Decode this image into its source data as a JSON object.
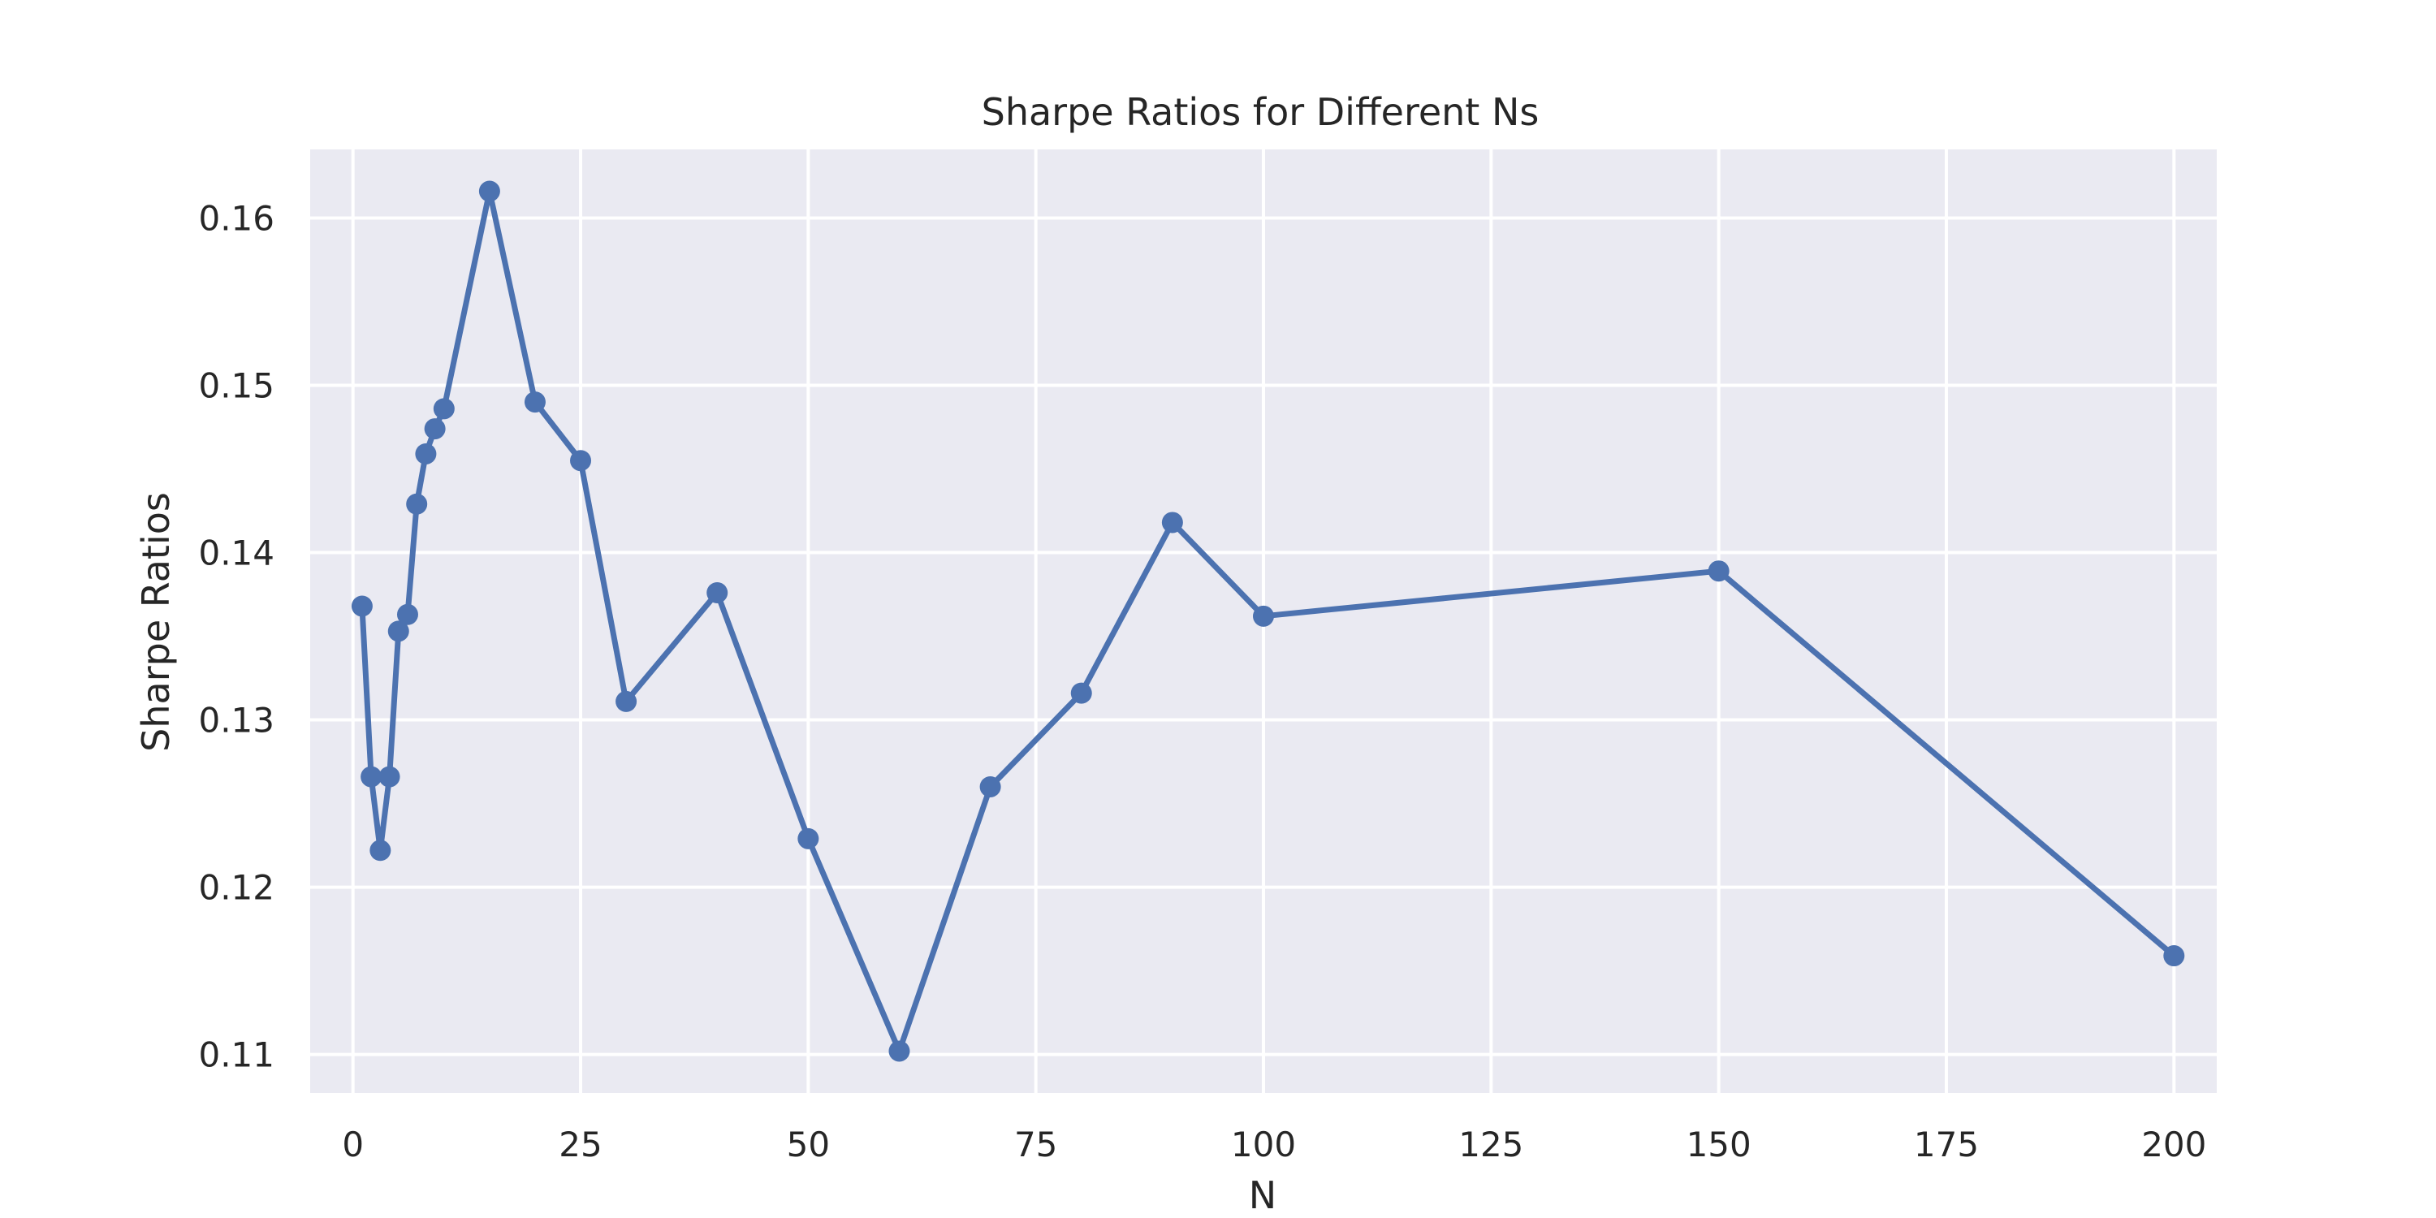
{
  "chart_data": {
    "type": "line",
    "title": "Sharpe Ratios for Different Ns",
    "xlabel": "N",
    "ylabel": "Sharpe Ratios",
    "xlim": [
      -4.7,
      204.7
    ],
    "ylim": [
      0.1077,
      0.1641
    ],
    "xticks": [
      0,
      25,
      50,
      75,
      100,
      125,
      150,
      175,
      200
    ],
    "yticks": [
      0.11,
      0.12,
      0.13,
      0.14,
      0.15,
      0.16
    ],
    "ytick_labels": [
      "0.11",
      "0.12",
      "0.13",
      "0.14",
      "0.15",
      "0.16"
    ],
    "grid": true,
    "colors": {
      "series": "#4c72b0",
      "plot_background": "#eaeaf2",
      "grid": "#ffffff"
    },
    "x": [
      1,
      2,
      3,
      4,
      5,
      6,
      7,
      8,
      9,
      10,
      15,
      20,
      25,
      30,
      40,
      50,
      60,
      70,
      80,
      90,
      100,
      150,
      200
    ],
    "values": [
      0.1368,
      0.1266,
      0.1222,
      0.1266,
      0.1353,
      0.1363,
      0.1429,
      0.1459,
      0.1474,
      0.1486,
      0.1616,
      0.149,
      0.1455,
      0.1311,
      0.1376,
      0.1229,
      0.1102,
      0.126,
      0.1316,
      0.1418,
      0.1362,
      0.1389,
      0.1159
    ]
  }
}
